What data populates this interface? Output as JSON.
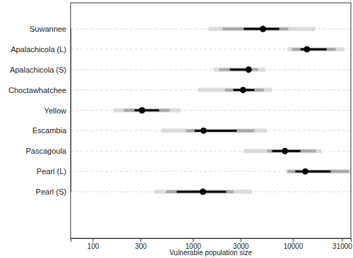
{
  "chart_data": {
    "type": "interval",
    "x_label": "Vulnerable population size",
    "categories": [
      "Suwannee",
      "Apalachicola (L)",
      "Apalachicola (S)",
      "Choctawhatchee",
      "Yellow",
      "Escambia",
      "Pascagoula",
      "Pearl (L)",
      "Pearl (S)"
    ],
    "values": [
      5030,
      13800,
      3610,
      3180,
      310,
      1280,
      8320,
      13300,
      1260
    ],
    "interval_inner_low": [
      3230,
      11900,
      2340,
      2540,
      260,
      1040,
      6200,
      10600,
      690
    ],
    "interval_inner_high": [
      7300,
      21700,
      3800,
      4120,
      460,
      2750,
      11900,
      23900,
      2160
    ],
    "interval_outer_low": [
      1990,
      9800,
      1830,
      2090,
      204,
      855,
      5530,
      8850,
      542
    ],
    "interval_outer_high": [
      8990,
      26800,
      4480,
      5120,
      588,
      4120,
      17000,
      36300,
      2540
    ],
    "sample_low": [
      1430,
      8850,
      1610,
      1120,
      160,
      484,
      3230,
      8590,
      411
    ],
    "sample_high": [
      16800,
      32500,
      5280,
      6200,
      750,
      5530,
      19400,
      38000,
      3940
    ],
    "xlim": [
      60,
      38000
    ],
    "xticks": [
      100,
      300,
      1000,
      3000,
      10000,
      31000
    ],
    "log": "x",
    "grid": true,
    "color": "#000000"
  }
}
